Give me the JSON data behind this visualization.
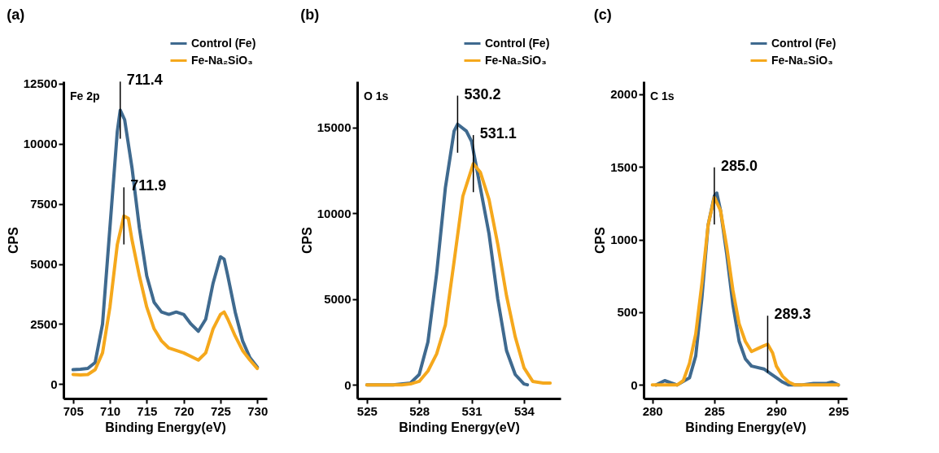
{
  "chart_data": [
    {
      "type": "line",
      "title": "(a)",
      "xlabel": "Binding Energy(eV)",
      "ylabel": "CPS",
      "xlim": [
        703.7,
        731.3
      ],
      "ylim": [
        -600,
        12600
      ],
      "xticks": [
        705,
        710,
        715,
        720,
        725,
        730
      ],
      "yticks": [
        0,
        2500,
        5000,
        7500,
        10000,
        12500
      ],
      "legend": "top right",
      "grid": false,
      "marker": "none",
      "line_style": "solid",
      "annotations": [
        "Fe 2p",
        {
          "text": "711.4",
          "x": 711.4,
          "y": 11400
        },
        {
          "text": "711.9",
          "x": 711.9,
          "y": 7000
        }
      ],
      "series": [
        {
          "name": "Control (Fe)",
          "color": "#3f6a8f",
          "x": [
            705,
            706,
            707,
            708,
            709,
            710,
            711,
            711.4,
            712,
            713,
            714,
            715,
            716,
            717,
            718,
            719,
            720,
            721,
            722,
            723,
            724,
            725,
            725.5,
            726,
            727,
            728,
            729,
            730
          ],
          "values": [
            600,
            620,
            650,
            900,
            2500,
            6500,
            10500,
            11400,
            11000,
            9000,
            6500,
            4500,
            3400,
            3000,
            2900,
            3000,
            2900,
            2500,
            2200,
            2700,
            4200,
            5300,
            5200,
            4500,
            3000,
            1800,
            1100,
            700
          ]
        },
        {
          "name": "Fe-Na₂SiO₃",
          "color": "#f5a81c",
          "x": [
            705,
            706,
            707,
            708,
            709,
            710,
            711,
            711.9,
            712.5,
            713,
            714,
            715,
            716,
            717,
            718,
            719,
            720,
            721,
            722,
            723,
            724,
            725,
            725.5,
            726,
            727,
            728,
            729,
            730
          ],
          "values": [
            400,
            380,
            400,
            600,
            1300,
            3200,
            5800,
            7000,
            6900,
            6000,
            4500,
            3200,
            2300,
            1800,
            1500,
            1400,
            1300,
            1150,
            1000,
            1300,
            2300,
            2900,
            3000,
            2700,
            2000,
            1400,
            1000,
            650
          ]
        }
      ]
    },
    {
      "type": "line",
      "title": "(b)",
      "xlabel": "Binding Energy(eV)",
      "ylabel": "CPS",
      "xlim": [
        524.45,
        536.1
      ],
      "ylim": [
        -800,
        17700
      ],
      "xticks": [
        525,
        528,
        531,
        534
      ],
      "yticks": [
        0,
        5000,
        10000,
        15000
      ],
      "legend": "top right",
      "grid": false,
      "marker": "none",
      "line_style": "solid",
      "annotations": [
        "O 1s",
        {
          "text": "530.2",
          "x": 530.2,
          "y": 15200
        },
        {
          "text": "531.1",
          "x": 531.1,
          "y": 12900
        }
      ],
      "series": [
        {
          "name": "Control (Fe)",
          "color": "#3f6a8f",
          "x": [
            525,
            526.5,
            527.5,
            528,
            528.5,
            529,
            529.5,
            530,
            530.2,
            530.7,
            531,
            531.5,
            532,
            532.5,
            533,
            533.5,
            534,
            534.2
          ],
          "values": [
            0,
            0,
            100,
            600,
            2500,
            6500,
            11500,
            14800,
            15200,
            14800,
            14200,
            11500,
            8800,
            5000,
            2000,
            600,
            50,
            0
          ]
        },
        {
          "name": "Fe-Na₂SiO₃",
          "color": "#f5a81c",
          "x": [
            525,
            527,
            527.5,
            528,
            528.5,
            529,
            529.5,
            530,
            530.5,
            531.1,
            531.5,
            532,
            532.5,
            533,
            533.5,
            534,
            534.5,
            535.1,
            535.5
          ],
          "values": [
            0,
            0,
            50,
            200,
            800,
            1800,
            3500,
            7200,
            11000,
            12900,
            12400,
            10800,
            8200,
            5200,
            2800,
            1000,
            200,
            100,
            100
          ]
        }
      ]
    },
    {
      "type": "line",
      "title": "(c)",
      "xlabel": "Binding Energy(eV)",
      "ylabel": "CPS",
      "xlim": [
        279.3,
        295.7
      ],
      "ylim": [
        -93,
        2088
      ],
      "xticks": [
        280,
        285,
        290,
        295
      ],
      "yticks": [
        0,
        500,
        1000,
        1500,
        2000
      ],
      "legend": "top right",
      "grid": false,
      "marker": "none",
      "line_style": "solid",
      "annotations": [
        "C 1s",
        {
          "text": "285.0",
          "x": 285.0,
          "y": 1300
        },
        {
          "text": "289.3",
          "x": 289.3,
          "y": 280
        }
      ],
      "series": [
        {
          "name": "Control (Fe)",
          "color": "#3f6a8f",
          "x": [
            280.3,
            281,
            282,
            283,
            283.5,
            284,
            284.5,
            285,
            285.2,
            285.5,
            286,
            286.5,
            287,
            287.5,
            288,
            289,
            289.5,
            290,
            290.5,
            291,
            292,
            293,
            294,
            294.5,
            295
          ],
          "values": [
            0,
            30,
            0,
            50,
            200,
            600,
            1100,
            1300,
            1320,
            1200,
            900,
            550,
            300,
            180,
            130,
            110,
            80,
            50,
            20,
            0,
            0,
            10,
            10,
            20,
            0
          ]
        },
        {
          "name": "Fe-Na₂SiO₃",
          "color": "#f5a81c",
          "x": [
            280,
            282,
            282.5,
            283,
            283.5,
            284,
            284.5,
            285,
            285.5,
            286,
            286.5,
            287,
            287.5,
            288,
            288.5,
            289,
            289.3,
            289.7,
            290,
            290.5,
            291,
            291.5,
            295
          ],
          "values": [
            0,
            0,
            30,
            150,
            350,
            700,
            1100,
            1290,
            1200,
            950,
            650,
            420,
            300,
            230,
            250,
            270,
            280,
            220,
            130,
            60,
            20,
            0,
            0
          ]
        }
      ]
    }
  ]
}
